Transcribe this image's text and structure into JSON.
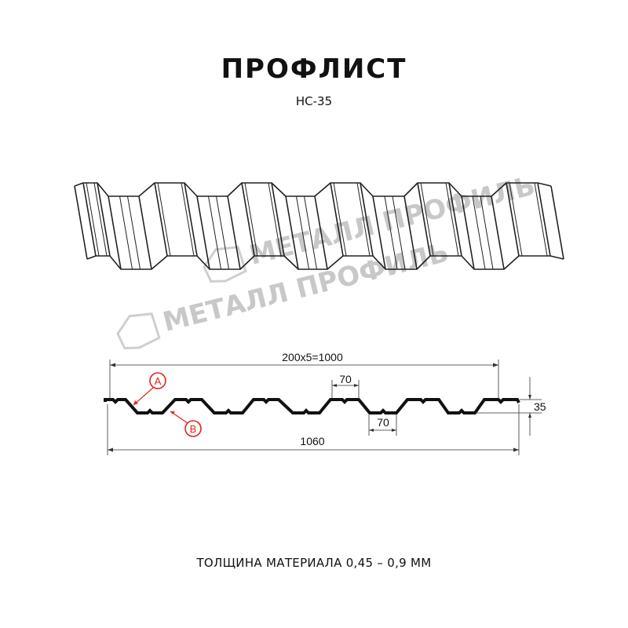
{
  "title": "ПРОФЛИСТ",
  "subtitle": "НС-35",
  "footer": "ТОЛЩИНА МАТЕРИАЛА 0,45 – 0,9 ММ",
  "watermark": "МЕТАЛЛ ПРОФИЛЬ",
  "section": {
    "dim_pitch": "200x5=1000",
    "dim_top_flat": "70",
    "dim_bottom_flat": "70",
    "dim_height": "35",
    "dim_total": "1060",
    "label_a": "A",
    "label_b": "B"
  },
  "colors": {
    "profile": "#111111",
    "callout": "#e0231c",
    "watermark": "#c8c8c8"
  }
}
